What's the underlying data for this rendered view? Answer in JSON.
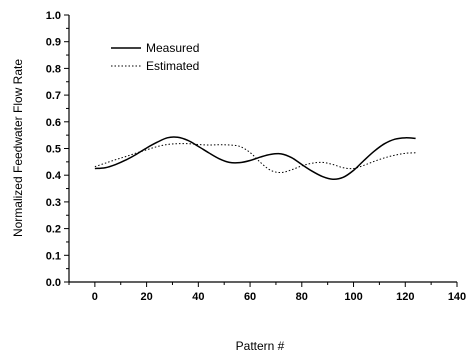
{
  "chart_data": {
    "type": "line",
    "title": "",
    "xlabel": "Pattern #",
    "ylabel": "Normalized Feedwater Flow Rate",
    "xlim": [
      -10,
      140
    ],
    "ylim": [
      0.0,
      1.0
    ],
    "xticks": [
      0,
      20,
      40,
      60,
      80,
      100,
      120,
      140
    ],
    "yticks": [
      0.0,
      0.1,
      0.2,
      0.3,
      0.4,
      0.5,
      0.6,
      0.7,
      0.8,
      0.9,
      1.0
    ],
    "ytick_labels": [
      "0.0",
      "0.1",
      "0.2",
      "0.3",
      "0.4",
      "0.5",
      "0.6",
      "0.7",
      "0.8",
      "0.9",
      "1.0"
    ],
    "grid": false,
    "legend_position": "top-left",
    "series": [
      {
        "name": "Measured",
        "style": "solid",
        "x": [
          0,
          4,
          8,
          12,
          16,
          20,
          24,
          28,
          32,
          36,
          40,
          44,
          48,
          52,
          56,
          60,
          64,
          68,
          72,
          76,
          80,
          84,
          88,
          92,
          96,
          100,
          104,
          108,
          112,
          116,
          120,
          124
        ],
        "y": [
          0.425,
          0.428,
          0.44,
          0.457,
          0.478,
          0.502,
          0.523,
          0.54,
          0.542,
          0.53,
          0.508,
          0.484,
          0.462,
          0.448,
          0.447,
          0.455,
          0.468,
          0.478,
          0.48,
          0.466,
          0.44,
          0.415,
          0.395,
          0.385,
          0.392,
          0.418,
          0.455,
          0.49,
          0.518,
          0.535,
          0.54,
          0.538
        ]
      },
      {
        "name": "Estimated",
        "style": "dotted",
        "x": [
          0,
          4,
          8,
          12,
          16,
          20,
          24,
          28,
          32,
          36,
          40,
          44,
          48,
          52,
          56,
          60,
          64,
          68,
          72,
          76,
          80,
          84,
          88,
          92,
          96,
          100,
          104,
          108,
          112,
          116,
          120,
          124
        ],
        "y": [
          0.432,
          0.445,
          0.458,
          0.47,
          0.483,
          0.495,
          0.507,
          0.515,
          0.518,
          0.518,
          0.515,
          0.513,
          0.514,
          0.513,
          0.508,
          0.485,
          0.448,
          0.418,
          0.41,
          0.42,
          0.435,
          0.445,
          0.448,
          0.44,
          0.428,
          0.425,
          0.437,
          0.452,
          0.465,
          0.475,
          0.482,
          0.484
        ]
      }
    ]
  }
}
